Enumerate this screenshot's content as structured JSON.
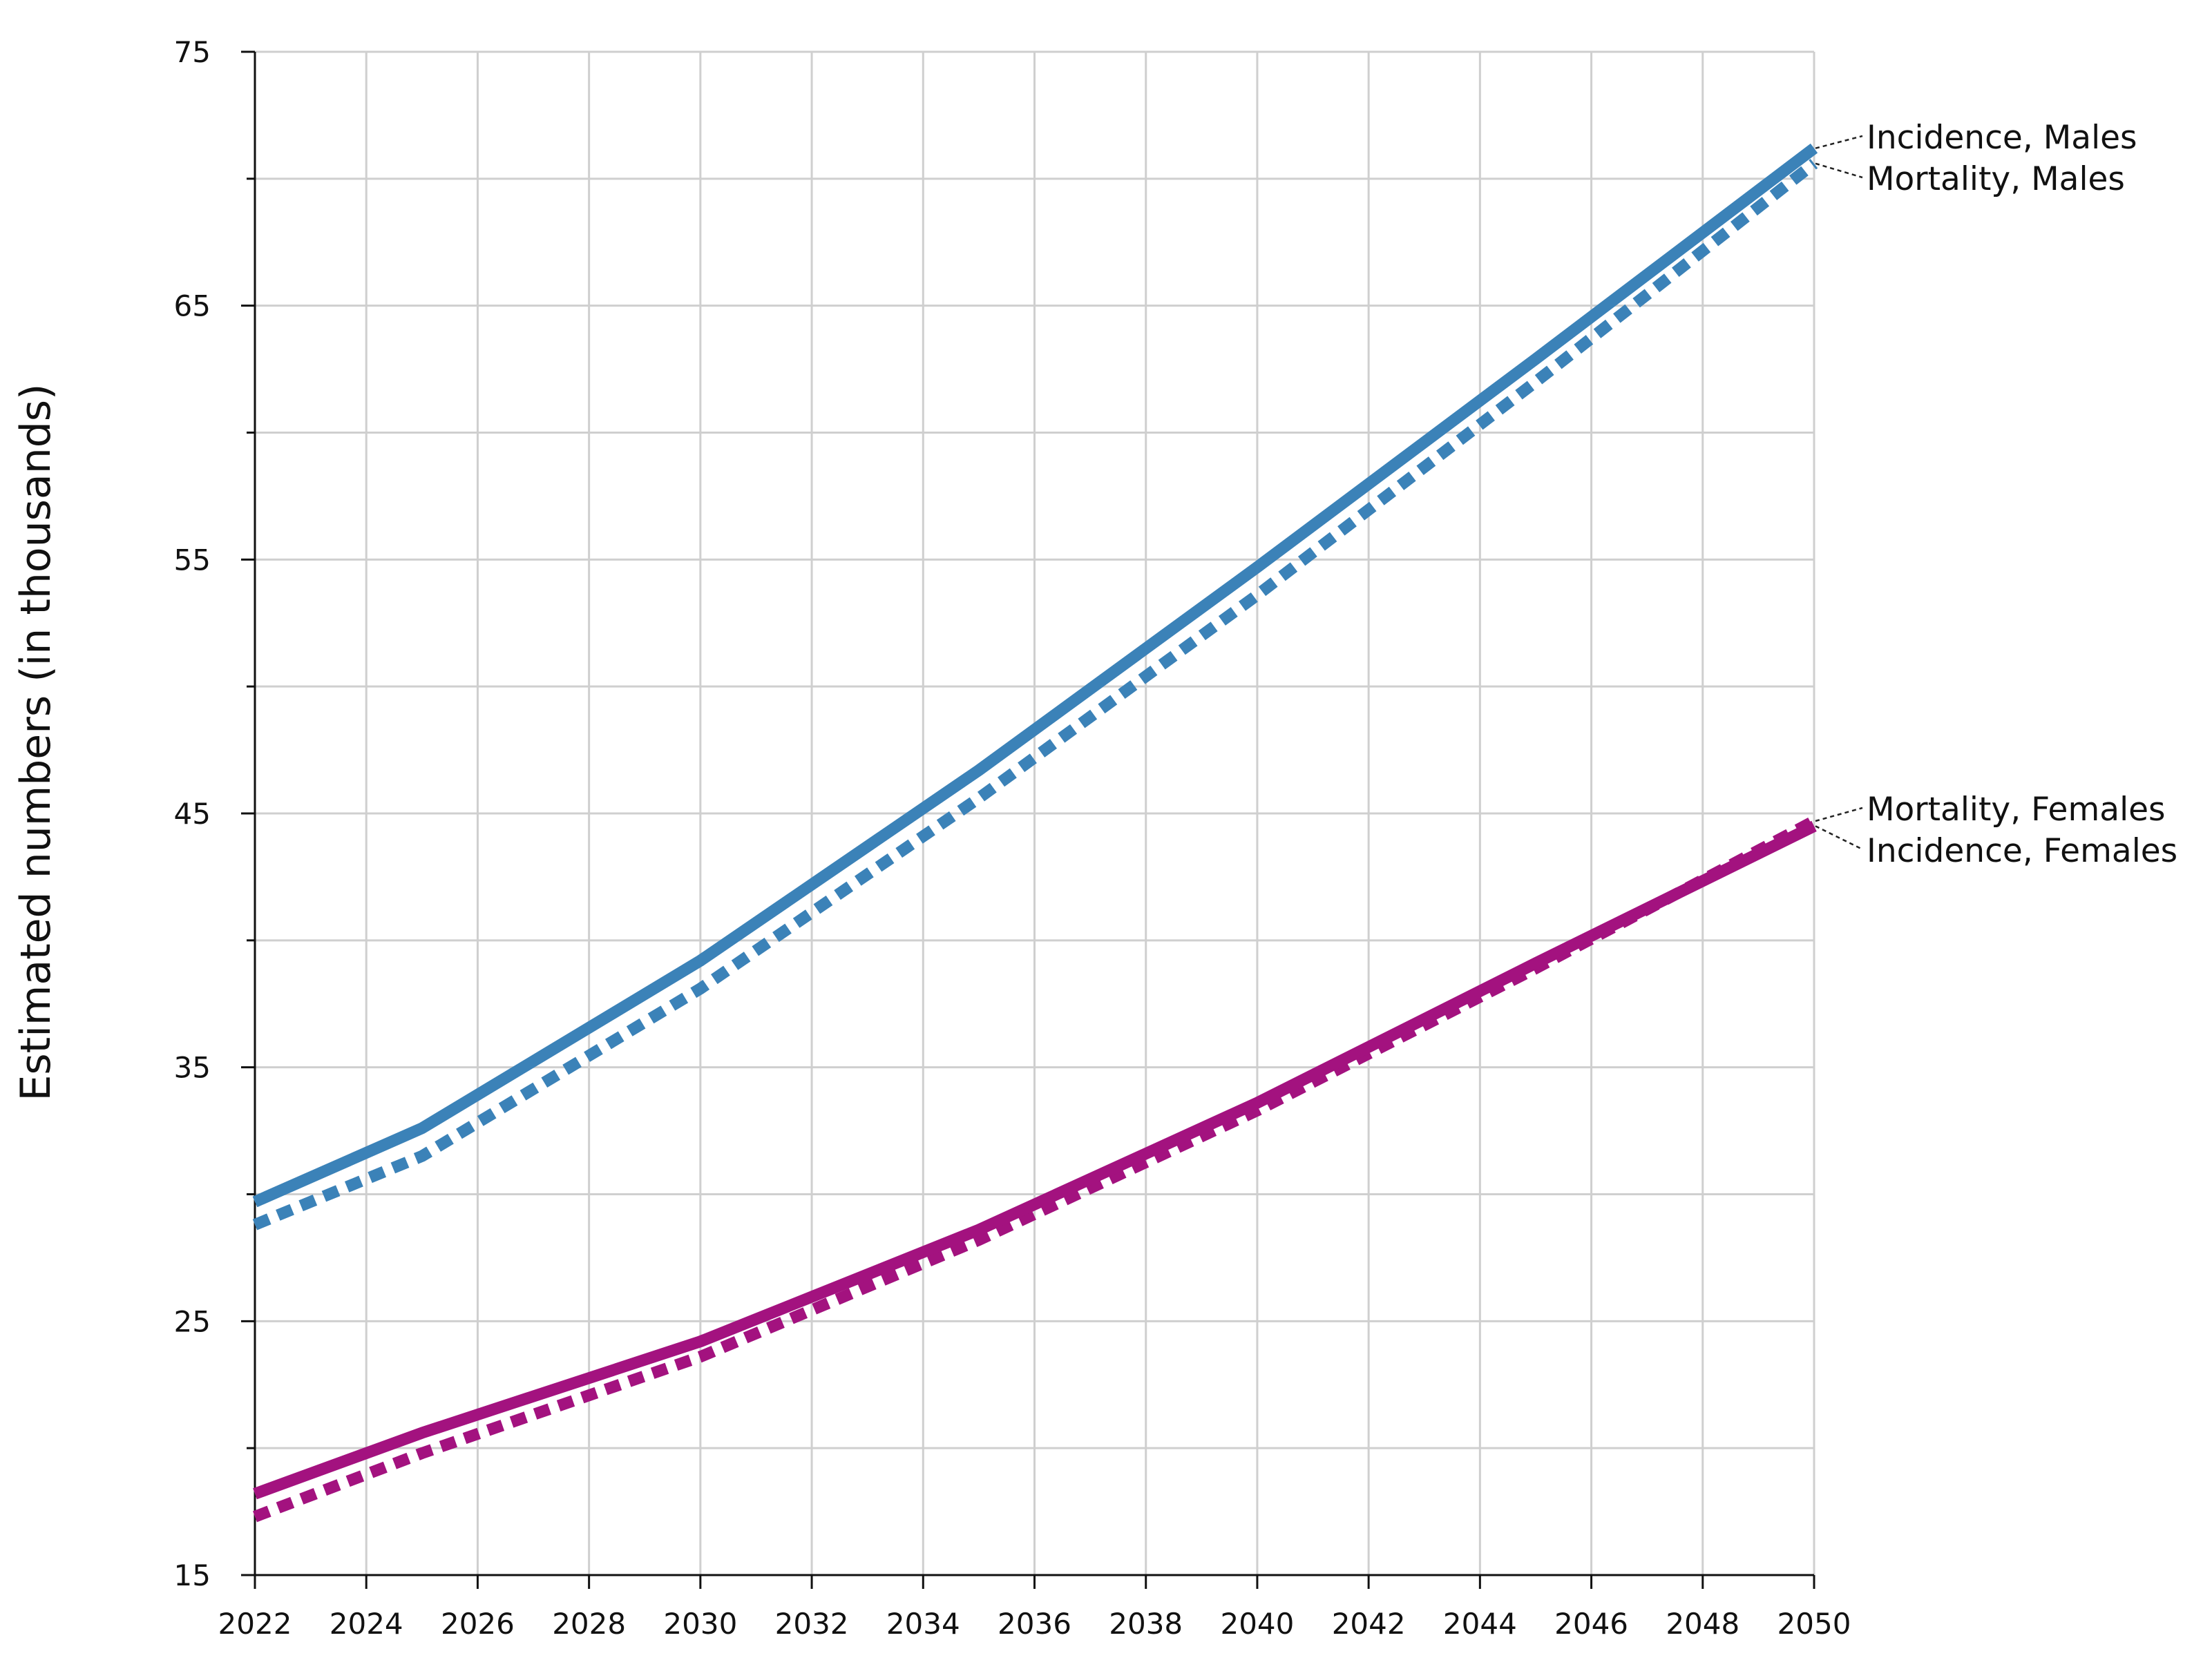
{
  "chart_data": {
    "type": "line",
    "title": "",
    "xlabel": "",
    "ylabel": "Estimated numbers (in thousands)",
    "xlim": [
      2022,
      2050
    ],
    "ylim": [
      15,
      75
    ],
    "x_ticks": [
      2022,
      2024,
      2026,
      2028,
      2030,
      2032,
      2034,
      2036,
      2038,
      2040,
      2042,
      2044,
      2046,
      2048,
      2050
    ],
    "y_ticks": [
      15,
      25,
      35,
      45,
      55,
      65,
      75
    ],
    "y_minor_ticks": [
      20,
      30,
      40,
      50,
      60,
      70
    ],
    "grid": true,
    "legend": "direct labels at right end of lines",
    "x": [
      2022,
      2025,
      2030,
      2035,
      2040,
      2045,
      2050
    ],
    "series": [
      {
        "name": "Incidence, Males",
        "color": "#3b82b8",
        "style": "solid",
        "values": [
          29.7,
          32.6,
          39.2,
          46.7,
          54.7,
          62.9,
          71.2
        ]
      },
      {
        "name": "Mortality, Males",
        "color": "#3b82b8",
        "style": "dotted",
        "values": [
          28.8,
          31.5,
          38.1,
          45.6,
          53.6,
          62.0,
          70.6
        ]
      },
      {
        "name": "Mortality, Females",
        "color": "#a3127f",
        "style": "dotted",
        "values": [
          17.3,
          19.8,
          23.6,
          28.2,
          33.3,
          38.9,
          44.7
        ]
      },
      {
        "name": "Incidence, Females",
        "color": "#a3127f",
        "style": "solid",
        "values": [
          18.2,
          20.6,
          24.2,
          28.6,
          33.6,
          39.1,
          44.5
        ]
      }
    ]
  }
}
